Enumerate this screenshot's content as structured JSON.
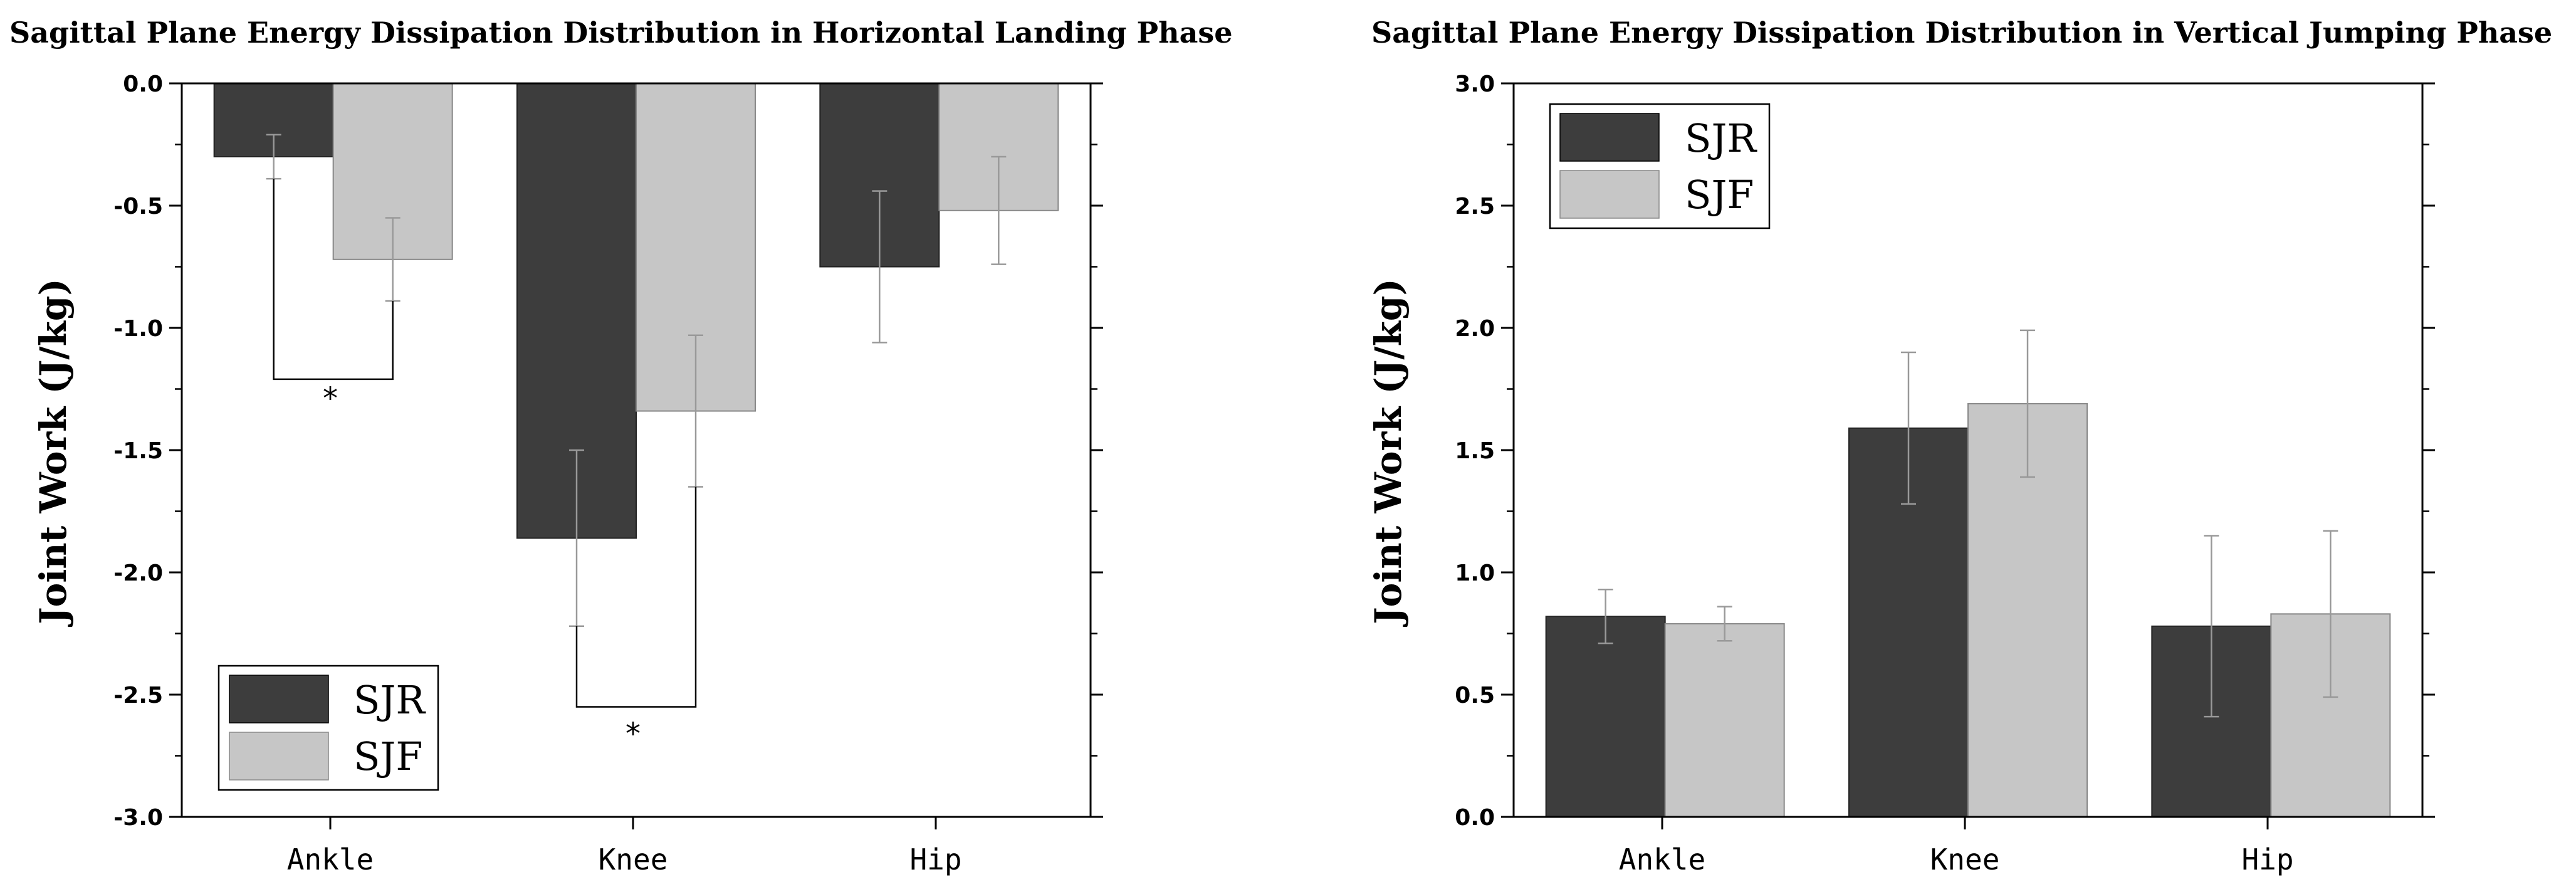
{
  "colors": {
    "SJR": "#3d3d3d",
    "SJF": "#c6c6c6",
    "error": "#999999",
    "axis": "#000000"
  },
  "chart_data": [
    {
      "type": "bar",
      "title": "Sagittal Plane Energy Dissipation Distribution in Horizontal Landing Phase",
      "xlabel": "",
      "ylabel": "Joint Work (J/kg)",
      "ylim": [
        -3.0,
        0.0
      ],
      "yticks": [
        "0.0",
        "-0.5",
        "-1.0",
        "-1.5",
        "-2.0",
        "-2.5",
        "-3.0"
      ],
      "categories": [
        "Ankle",
        "Knee",
        "Hip"
      ],
      "series": [
        {
          "name": "SJR",
          "values": [
            -0.3,
            -1.86,
            -0.75
          ],
          "errors": [
            0.09,
            0.36,
            0.31
          ]
        },
        {
          "name": "SJF",
          "values": [
            -0.72,
            -1.34,
            -0.52
          ],
          "errors": [
            0.17,
            0.31,
            0.22
          ]
        }
      ],
      "legend": "bottom-left",
      "annotations": [
        {
          "category": "Ankle",
          "label": "*",
          "bracket_at": -1.21
        },
        {
          "category": "Knee",
          "label": "*",
          "bracket_at": -2.55
        }
      ]
    },
    {
      "type": "bar",
      "title": "Sagittal Plane Energy Dissipation Distribution in Vertical Jumping Phase",
      "xlabel": "",
      "ylabel": "Joint Work (J/kg)",
      "ylim": [
        0.0,
        3.0
      ],
      "yticks": [
        "0.0",
        "0.5",
        "1.0",
        "1.5",
        "2.0",
        "2.5",
        "3.0"
      ],
      "categories": [
        "Ankle",
        "Knee",
        "Hip"
      ],
      "series": [
        {
          "name": "SJR",
          "values": [
            0.82,
            1.59,
            0.78
          ],
          "errors": [
            0.11,
            0.31,
            0.37
          ]
        },
        {
          "name": "SJF",
          "values": [
            0.79,
            1.69,
            0.83
          ],
          "errors": [
            0.07,
            0.3,
            0.34
          ]
        }
      ],
      "legend": "top-left",
      "annotations": []
    }
  ]
}
